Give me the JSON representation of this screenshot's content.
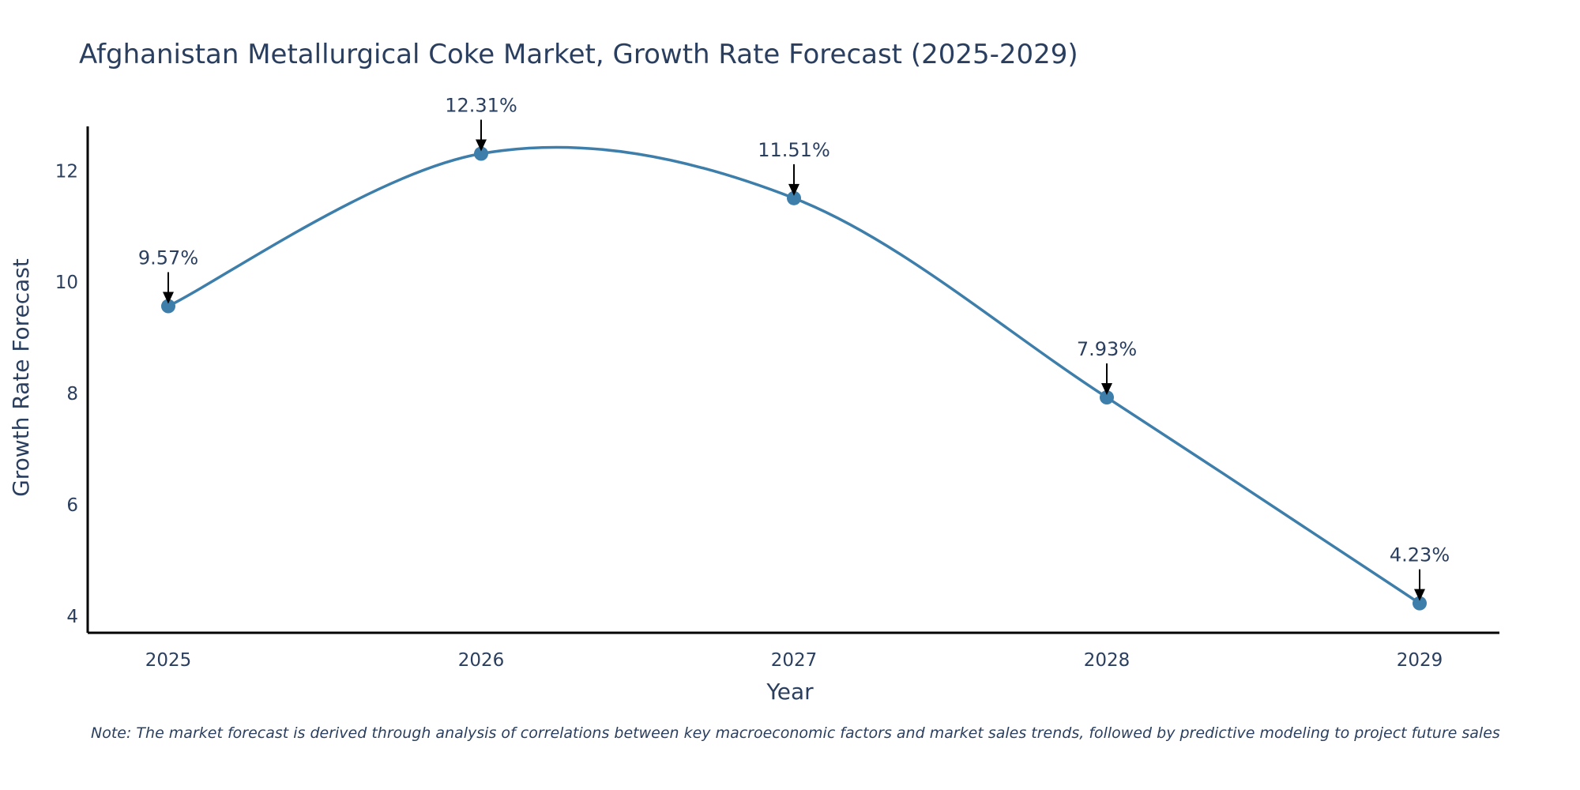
{
  "colors": {
    "line": "#3d7eaa",
    "marker": "#3d7eaa",
    "text": "#2a3f5f",
    "axis": "#000000"
  },
  "chart_data": {
    "type": "line",
    "title": "Afghanistan Metallurgical Coke Market, Growth Rate Forecast (2025-2029)",
    "xlabel": "Year",
    "ylabel": "Growth Rate Forecast",
    "categories": [
      "2025",
      "2026",
      "2027",
      "2028",
      "2029"
    ],
    "values": [
      9.57,
      12.31,
      11.51,
      7.93,
      4.23
    ],
    "labels": [
      "9.57%",
      "12.31%",
      "11.51%",
      "7.93%",
      "4.23%"
    ],
    "yticks": [
      4,
      6,
      8,
      10,
      12
    ],
    "ylim": [
      3.7,
      12.8
    ],
    "grid": false,
    "smoothing": "spline"
  },
  "note": "Note: The market forecast is derived through analysis of correlations between key macroeconomic factors and market sales trends, followed by predictive modeling to project future sales"
}
